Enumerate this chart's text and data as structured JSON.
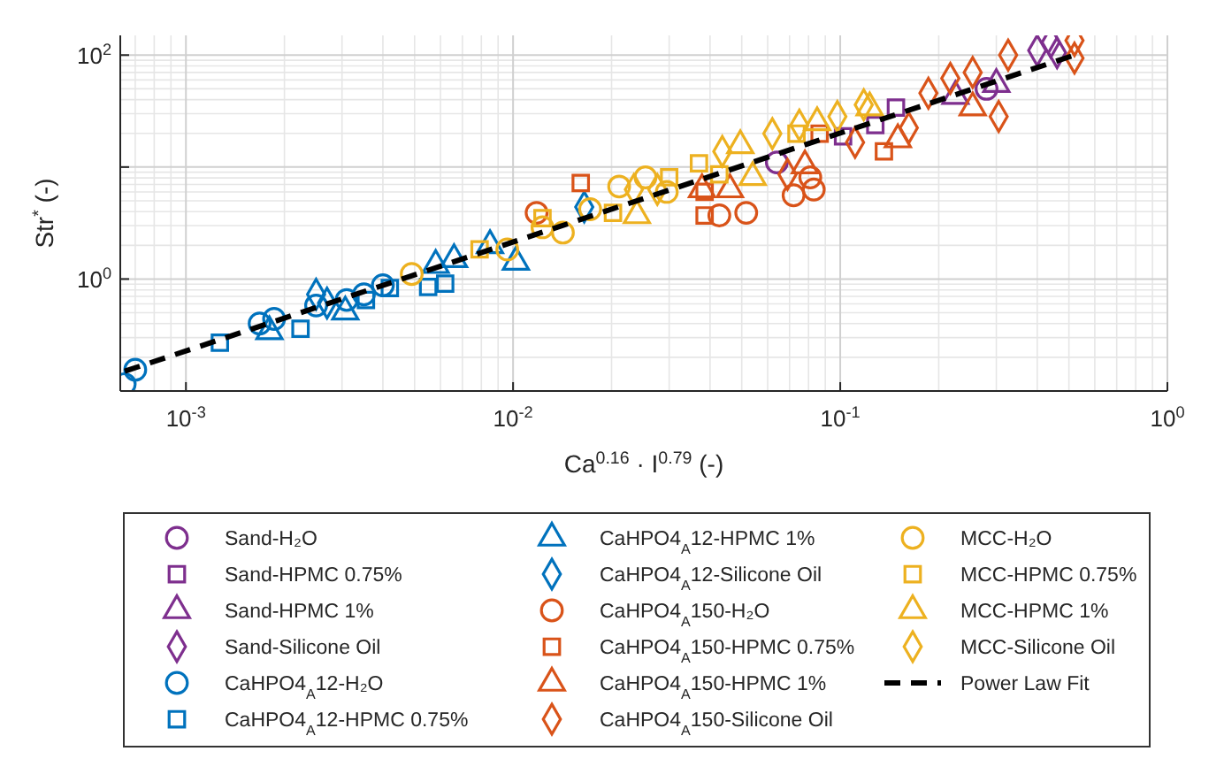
{
  "chart_data": {
    "type": "scatter",
    "xlabel": "Ca$^{0.16}$ · I$^{0.79}$ (-)",
    "ylabel": "Str$^{*}$ (-)",
    "log": "xy",
    "grid": true,
    "legend": "bottom",
    "xlim": [
      0.00063,
      1
    ],
    "xticks": [
      {
        "value": 0.001,
        "label": "10$^{-3}$"
      },
      {
        "value": 0.01,
        "label": "10$^{-2}$"
      },
      {
        "value": 0.1,
        "label": "10$^{-1}$"
      },
      {
        "value": 1,
        "label": "10$^{0}$"
      }
    ],
    "ylim": [
      0.1,
      150
    ],
    "yticks": [
      {
        "value": 1,
        "label": "10$^{0}$"
      },
      {
        "value": 10,
        "label": null
      },
      {
        "value": 100,
        "label": "10$^{2}$"
      }
    ],
    "series": [
      {
        "name": "Sand-H₂O",
        "color": "#7e2f8e",
        "marker": "circle",
        "x": [
          0.064,
          0.28
        ],
        "values": [
          11,
          50
        ]
      },
      {
        "name": "Sand-HPMC 0.75%",
        "color": "#7e2f8e",
        "marker": "square",
        "x": [
          0.102,
          0.128,
          0.148
        ],
        "values": [
          18.8,
          23.7,
          34
        ]
      },
      {
        "name": "Sand-HPMC 1%",
        "color": "#7e2f8e",
        "marker": "triangle",
        "x": [
          0.225,
          0.3
        ],
        "values": [
          43,
          55
        ]
      },
      {
        "name": "Sand-Silicone Oil",
        "color": "#7e2f8e",
        "marker": "diamond",
        "x": [
          0.4,
          0.44,
          0.46
        ],
        "values": [
          110,
          130,
          105
        ]
      },
      {
        "name": "CaHPO4$_{A}$12-H₂O",
        "color": "#0072bd",
        "marker": "circle",
        "x": [
          0.00065,
          0.0007,
          0.00168,
          0.00186,
          0.0025,
          0.0031,
          0.0035,
          0.004
        ],
        "values": [
          0.115,
          0.155,
          0.4,
          0.44,
          0.58,
          0.65,
          0.73,
          0.88
        ]
      },
      {
        "name": "CaHPO4$_{A}$12-HPMC 0.75%",
        "color": "#0072bd",
        "marker": "square",
        "x": [
          0.00127,
          0.00224,
          0.00355,
          0.0042,
          0.0055,
          0.0062
        ],
        "values": [
          0.27,
          0.36,
          0.65,
          0.83,
          0.85,
          0.91
        ]
      },
      {
        "name": "CaHPO4$_{A}$12-HPMC 1%",
        "color": "#0072bd",
        "marker": "triangle",
        "x": [
          0.0018,
          0.00307,
          0.0058,
          0.0066,
          0.0085,
          0.0102
        ],
        "values": [
          0.34,
          0.51,
          1.33,
          1.5,
          2.0,
          1.42
        ]
      },
      {
        "name": "CaHPO4$_{A}$12-Silicone Oil",
        "color": "#0072bd",
        "marker": "diamond",
        "x": [
          0.0025,
          0.0027,
          0.0165
        ],
        "values": [
          0.73,
          0.61,
          4.4
        ]
      },
      {
        "name": "CaHPO4$_{A}$150-H₂O",
        "color": "#d95319",
        "marker": "circle",
        "x": [
          0.0118,
          0.0427,
          0.0516,
          0.072,
          0.081,
          0.083
        ],
        "values": [
          3.9,
          3.7,
          3.9,
          5.6,
          8.1,
          6.3
        ]
      },
      {
        "name": "CaHPO4$_{A}$150-HPMC 0.75%",
        "color": "#d95319",
        "marker": "square",
        "x": [
          0.0161,
          0.0385,
          0.0385,
          0.0865,
          0.136
        ],
        "values": [
          7.2,
          3.7,
          6.0,
          19.9,
          13.8
        ]
      },
      {
        "name": "CaHPO4$_{A}$150-HPMC 1%",
        "color": "#d95319",
        "marker": "triangle",
        "x": [
          0.0378,
          0.046,
          0.078,
          0.15,
          0.254
        ],
        "values": [
          6.3,
          6.3,
          10.3,
          17.6,
          34
        ]
      },
      {
        "name": "CaHPO4$_{A}$150-Silicone Oil",
        "color": "#d95319",
        "marker": "diamond",
        "x": [
          0.069,
          0.111,
          0.162,
          0.186,
          0.217,
          0.254,
          0.305,
          0.326,
          0.52,
          0.52
        ],
        "values": [
          8.6,
          16.6,
          22.4,
          45.7,
          62,
          70,
          28.3,
          100,
          135,
          94
        ]
      },
      {
        "name": "MCC-H₂O",
        "color": "#edb120",
        "marker": "circle",
        "x": [
          0.0049,
          0.0096,
          0.0123,
          0.0142,
          0.0172,
          0.0211,
          0.0254,
          0.0295
        ],
        "values": [
          1.11,
          1.84,
          2.9,
          2.6,
          4.2,
          6.7,
          8.1,
          6.0
        ]
      },
      {
        "name": "MCC-HPMC 0.75%",
        "color": "#edb120",
        "marker": "square",
        "x": [
          0.0079,
          0.0123,
          0.0202,
          0.03,
          0.037,
          0.0427,
          0.0735
        ],
        "values": [
          1.84,
          3.5,
          3.9,
          8.1,
          10.8,
          8.6,
          19.9
        ]
      },
      {
        "name": "MCC-HPMC 1%",
        "color": "#edb120",
        "marker": "triangle",
        "x": [
          0.0239,
          0.054,
          0.0495,
          0.085,
          0.123
        ],
        "values": [
          3.7,
          8.1,
          15.6,
          25,
          34
        ]
      },
      {
        "name": "MCC-Silicone Oil",
        "color": "#edb120",
        "marker": "diamond",
        "x": [
          0.0234,
          0.0276,
          0.0436,
          0.062,
          0.075,
          0.098,
          0.118
        ],
        "values": [
          6.3,
          6.3,
          13.8,
          19.9,
          23.7,
          28.3,
          36
        ]
      },
      {
        "name": "Power Law Fit",
        "type": "line",
        "color": "#000000",
        "line_style": "dashed",
        "x": [
          0.00065,
          0.52
        ],
        "values": [
          0.15,
          100
        ]
      }
    ]
  }
}
